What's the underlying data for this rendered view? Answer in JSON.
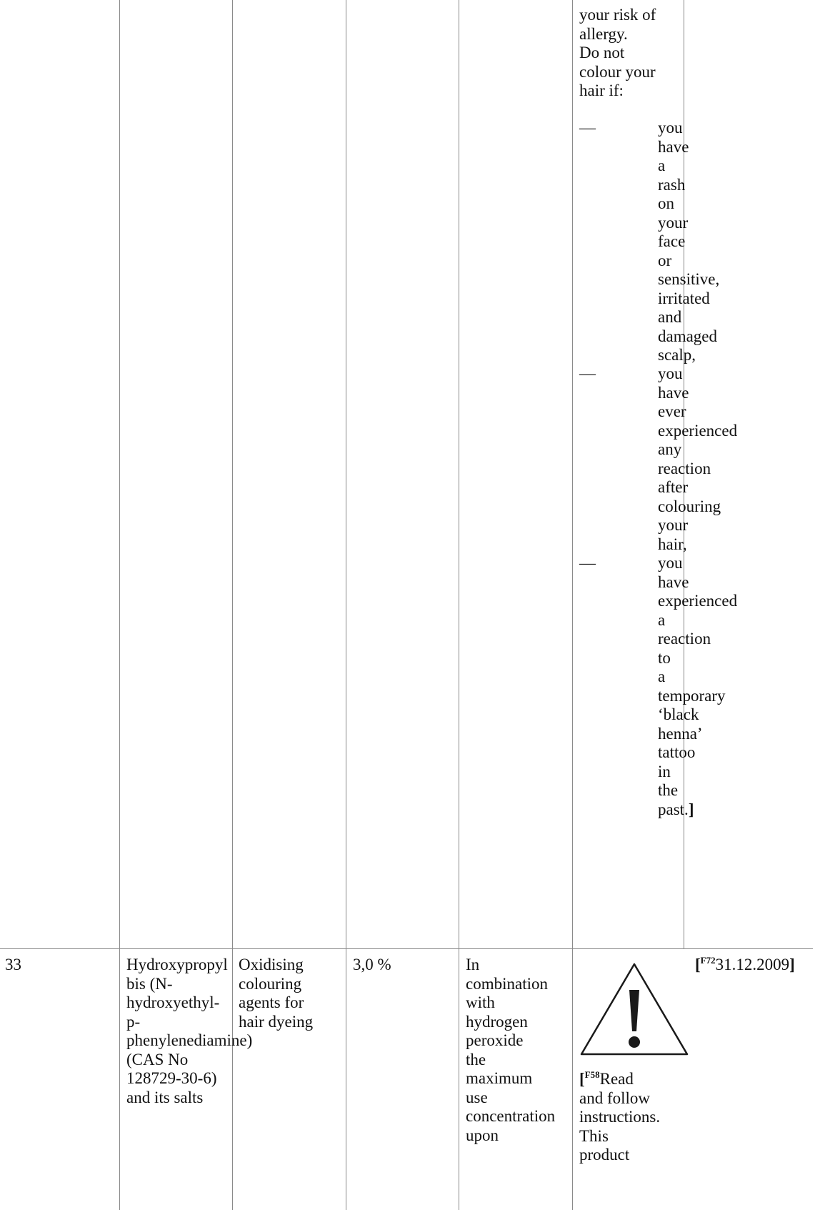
{
  "top_row": {
    "intro_lines": [
      "your risk of",
      "allergy.",
      "Do not",
      "colour your",
      "hair if:"
    ],
    "dash": "—",
    "bullets": [
      [
        "you",
        "have",
        "a",
        "rash",
        "on",
        "your",
        "face",
        "or",
        "sensitive,",
        "irritated",
        "and",
        "damaged",
        "scalp,"
      ],
      [
        "you",
        "have",
        "ever",
        "experienced",
        "any",
        "reaction",
        "after",
        "colouring",
        "your",
        "hair,"
      ],
      [
        "you",
        "have",
        "experienced",
        "a",
        "reaction",
        "to",
        "a",
        "temporary",
        "‘black",
        "henna’",
        "tattoo",
        "in",
        "the",
        "past."
      ]
    ],
    "closing_bracket": "]"
  },
  "row_33": {
    "number": "33",
    "substance_lines": [
      "Hydroxypropyl",
      "bis (N-",
      "hydroxyethyl-",
      "p-",
      "phenylenediamine)",
      "(CAS No",
      "128729-30-6)",
      "and its salts"
    ],
    "function_lines": [
      "Oxidising",
      "colouring",
      "agents for",
      "hair dyeing"
    ],
    "max_concentration": "3,0 %",
    "other_lines": [
      "In",
      "combination",
      "with",
      "hydrogen",
      "peroxide",
      "the",
      "maximum",
      "use",
      "concentration",
      "upon"
    ],
    "warning_icon": "warning-triangle-icon",
    "warning_open": "[",
    "warning_ref": "F58",
    "warning_lines": [
      "Read",
      "and follow",
      "instructions.",
      "This",
      "product"
    ],
    "date_open": "[",
    "date_ref": "F72",
    "date_value": "31.12.2009",
    "date_close": "]"
  }
}
